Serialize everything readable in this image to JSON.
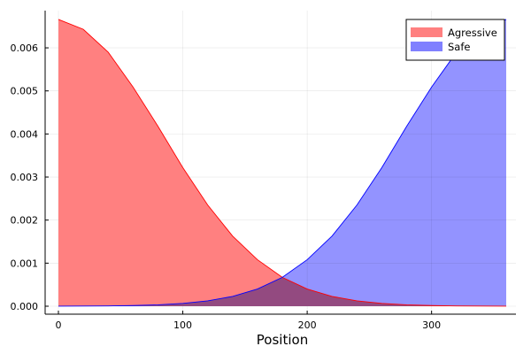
{
  "chart_data": {
    "type": "area",
    "title": "",
    "xlabel": "Position",
    "ylabel": "",
    "xlim": [
      0,
      360
    ],
    "ylim": [
      0,
      0.0067
    ],
    "x_ticks": [
      0,
      100,
      200,
      300
    ],
    "x_tick_labels": [
      "0",
      "100",
      "200",
      "300"
    ],
    "y_ticks": [
      0.0,
      0.001,
      0.002,
      0.003,
      0.004,
      0.005,
      0.006
    ],
    "y_tick_labels": [
      "0.000",
      "0.001",
      "0.002",
      "0.003",
      "0.004",
      "0.005",
      "0.006"
    ],
    "grid": true,
    "legend_position": "top-right",
    "x": [
      0,
      20,
      40,
      60,
      80,
      100,
      120,
      140,
      160,
      180,
      200,
      220,
      240,
      260,
      280,
      300,
      320,
      340,
      360
    ],
    "series": [
      {
        "name": "Agressive",
        "fill_color": "#ff8080",
        "line_color": "#ff0000",
        "values": [
          0.00666,
          0.00643,
          0.0059,
          0.00509,
          0.00418,
          0.00322,
          0.00235,
          0.00163,
          0.00108,
          0.00067,
          0.0004,
          0.000228,
          0.000124,
          6.45e-05,
          3.2e-05,
          1.52e-05,
          6.9e-06,
          3e-06,
          1.3e-06
        ]
      },
      {
        "name": "Safe",
        "fill_color": "#8080ff",
        "line_color": "#0000ff",
        "values": [
          1.3e-06,
          3e-06,
          6.9e-06,
          1.52e-05,
          3.2e-05,
          6.45e-05,
          0.000124,
          0.000228,
          0.0004,
          0.00067,
          0.00108,
          0.00163,
          0.00235,
          0.00322,
          0.00418,
          0.00509,
          0.0059,
          0.00643,
          0.00666
        ]
      }
    ]
  }
}
